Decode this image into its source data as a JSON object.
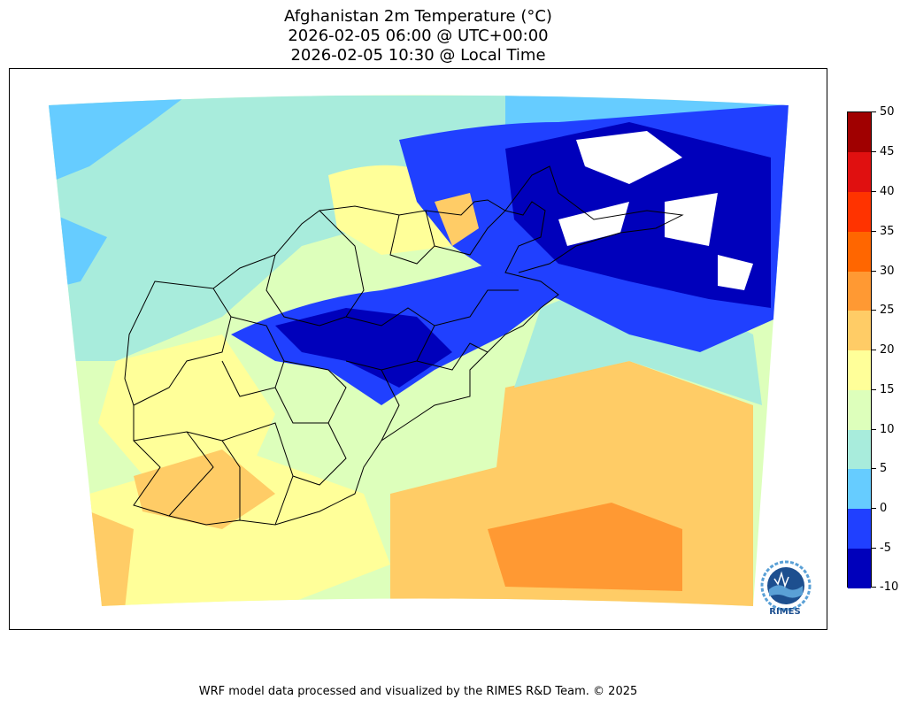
{
  "title": {
    "line1": "Afghanistan 2m Temperature (°C)",
    "line2": "2026-02-05 06:00 @ UTC+00:00",
    "line3": "2026-02-05 10:30 @ Local Time"
  },
  "colorbar": {
    "levels": [
      "50",
      "45",
      "40",
      "35",
      "30",
      "25",
      "20",
      "15",
      "10",
      "5",
      "0",
      "-5",
      "-10"
    ],
    "colors_top_to_bottom": [
      "#a00000",
      "#e01010",
      "#ff3300",
      "#ff6600",
      "#ff9933",
      "#ffcc66",
      "#ffff99",
      "#ddffbb",
      "#a8ecdc",
      "#66ccff",
      "#2040ff",
      "#0000bb"
    ]
  },
  "footer": "WRF model data processed and visualized by the RIMES R&D Team. © 2025",
  "logo": {
    "text": "RIMES"
  }
}
